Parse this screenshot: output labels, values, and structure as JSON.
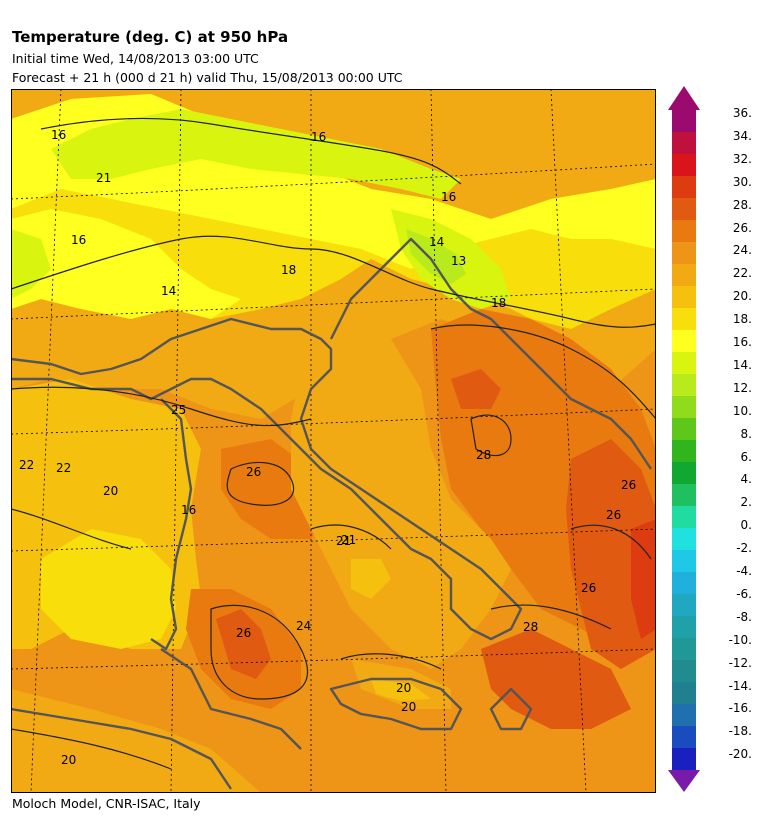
{
  "header": {
    "title": "Temperature (deg. C) at 950 hPa",
    "initial_time": "Initial time  Wed, 14/08/2013  03:00 UTC",
    "forecast": "Forecast  +  21 h  (000 d 21 h)  valid Thu, 15/08/2013 00:00 UTC"
  },
  "footer": {
    "credit": "Moloch Model, CNR-ISAC, Italy"
  },
  "legend": {
    "labels": [
      "36.",
      "34.",
      "32.",
      "30.",
      "28.",
      "26.",
      "24.",
      "22.",
      "20.",
      "18.",
      "16.",
      "14.",
      "12.",
      "10.",
      "8.",
      "6.",
      "4.",
      "2.",
      "0.",
      "-2.",
      "-4.",
      "-6.",
      "-8.",
      "-10.",
      "-12.",
      "-14.",
      "-16.",
      "-18.",
      "-20."
    ],
    "colors": [
      "#9b0a6e",
      "#c0103e",
      "#d9151b",
      "#dd3b10",
      "#e05a12",
      "#e87a10",
      "#ee9416",
      "#f2aa14",
      "#f5c00e",
      "#f8de0a",
      "#ffff20",
      "#d9f50f",
      "#b8ea1c",
      "#90db1c",
      "#5ec81a",
      "#30b51c",
      "#10a830",
      "#20c060",
      "#20dca0",
      "#20e0e0",
      "#20c8e8",
      "#20b0dc",
      "#20a8c0",
      "#20a0a8",
      "#209898",
      "#208c90",
      "#208090",
      "#2070b0",
      "#1a4cc0",
      "#1a20c0"
    ],
    "arrow_top_color": "#9b0a6e",
    "arrow_bottom_color": "#7a1aa8"
  },
  "map": {
    "contour_labels": [
      {
        "text": "16"
      },
      {
        "text": "16"
      },
      {
        "text": "16"
      },
      {
        "text": "16"
      },
      {
        "text": "14"
      },
      {
        "text": "13"
      },
      {
        "text": "14"
      },
      {
        "text": "18"
      },
      {
        "text": "18"
      },
      {
        "text": "21"
      },
      {
        "text": "22"
      },
      {
        "text": "22"
      },
      {
        "text": "25"
      },
      {
        "text": "26"
      },
      {
        "text": "20"
      },
      {
        "text": "16"
      },
      {
        "text": "21"
      },
      {
        "text": "26"
      },
      {
        "text": "24"
      },
      {
        "text": "26"
      },
      {
        "text": "28"
      },
      {
        "text": "26"
      },
      {
        "text": "26"
      },
      {
        "text": "20"
      },
      {
        "text": "20"
      },
      {
        "text": "20"
      },
      {
        "text": "28"
      },
      {
        "text": "21"
      }
    ]
  }
}
